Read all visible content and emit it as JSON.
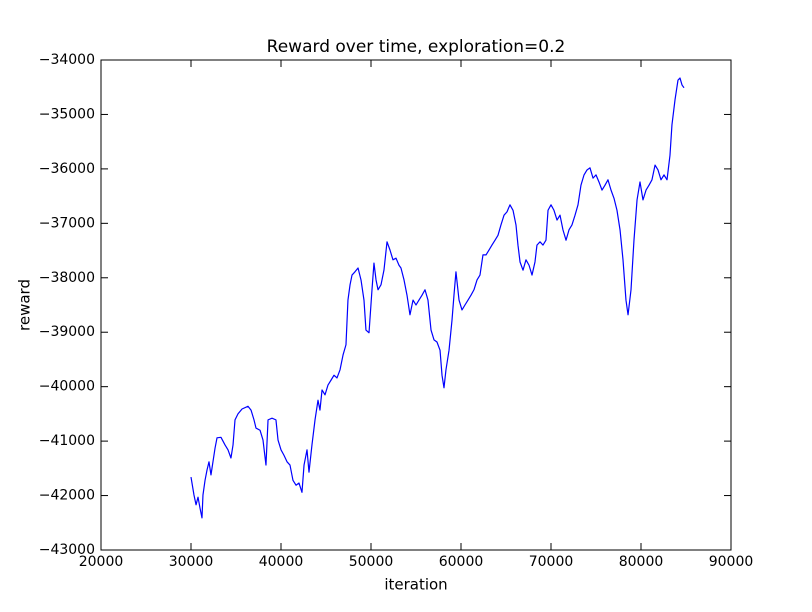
{
  "chart_data": {
    "type": "line",
    "title": "Reward over time, exploration=0.2",
    "x_label": "iteration",
    "y_label": "reward",
    "x": [
      30000,
      30330,
      30560,
      30780,
      31000,
      31220,
      31330,
      31560,
      31780,
      32000,
      32220,
      32440,
      32670,
      32890,
      33330,
      33780,
      34110,
      34440,
      34670,
      34890,
      35220,
      35670,
      36330,
      36670,
      37000,
      37220,
      37670,
      38000,
      38330,
      38560,
      39000,
      39440,
      39670,
      40000,
      40330,
      40670,
      41000,
      41330,
      41670,
      42000,
      42330,
      42560,
      42890,
      43110,
      43440,
      43780,
      44110,
      44330,
      44560,
      44890,
      45220,
      45560,
      45890,
      46220,
      46560,
      46890,
      47220,
      47440,
      47670,
      47890,
      48220,
      48560,
      48890,
      49220,
      49440,
      49780,
      50110,
      50330,
      50560,
      50780,
      51110,
      51440,
      51780,
      52110,
      52440,
      52780,
      53110,
      53330,
      53670,
      54000,
      54330,
      54670,
      55000,
      55330,
      55670,
      56000,
      56330,
      56670,
      57000,
      57330,
      57670,
      57890,
      58110,
      58330,
      58670,
      59000,
      59220,
      59440,
      59780,
      60110,
      60440,
      60780,
      61110,
      61440,
      61780,
      62110,
      62440,
      62780,
      63110,
      63440,
      63780,
      64110,
      64440,
      64780,
      65110,
      65440,
      65780,
      66110,
      66330,
      66560,
      66890,
      67220,
      67560,
      67890,
      68220,
      68440,
      68780,
      69110,
      69440,
      69670,
      70000,
      70330,
      70670,
      71000,
      71330,
      71670,
      72000,
      72330,
      72670,
      73000,
      73330,
      73670,
      74000,
      74330,
      74670,
      75000,
      75330,
      75670,
      76000,
      76330,
      76670,
      77000,
      77330,
      77670,
      78000,
      78330,
      78560,
      78890,
      79220,
      79560,
      79890,
      80220,
      80560,
      80890,
      81220,
      81560,
      81890,
      82220,
      82560,
      82890,
      83220,
      83440,
      83780,
      84110,
      84330,
      84560,
      84780
    ],
    "series": [
      {
        "color": "#0000ff",
        "values": [
          -41660,
          -41990,
          -42170,
          -42030,
          -42230,
          -42410,
          -41990,
          -41720,
          -41530,
          -41380,
          -41620,
          -41380,
          -41130,
          -40940,
          -40930,
          -41070,
          -41160,
          -41310,
          -41070,
          -40610,
          -40500,
          -40410,
          -40360,
          -40430,
          -40610,
          -40760,
          -40800,
          -40980,
          -41440,
          -40610,
          -40580,
          -40610,
          -40980,
          -41160,
          -41260,
          -41380,
          -41440,
          -41720,
          -41810,
          -41770,
          -41940,
          -41440,
          -41160,
          -41570,
          -41070,
          -40610,
          -40250,
          -40430,
          -40060,
          -40150,
          -39970,
          -39880,
          -39790,
          -39840,
          -39690,
          -39420,
          -39230,
          -38410,
          -38130,
          -37950,
          -37890,
          -37820,
          -38040,
          -38410,
          -38960,
          -39010,
          -38220,
          -37730,
          -38040,
          -38220,
          -38130,
          -37860,
          -37340,
          -37490,
          -37670,
          -37640,
          -37770,
          -37820,
          -38040,
          -38320,
          -38680,
          -38410,
          -38500,
          -38410,
          -38320,
          -38220,
          -38410,
          -38960,
          -39140,
          -39180,
          -39330,
          -39790,
          -40020,
          -39690,
          -39330,
          -38780,
          -38320,
          -37890,
          -38410,
          -38590,
          -38500,
          -38410,
          -38320,
          -38220,
          -38040,
          -37950,
          -37580,
          -37580,
          -37490,
          -37400,
          -37310,
          -37220,
          -37030,
          -36850,
          -36790,
          -36660,
          -36760,
          -37030,
          -37400,
          -37710,
          -37860,
          -37670,
          -37770,
          -37950,
          -37710,
          -37400,
          -37340,
          -37400,
          -37310,
          -36760,
          -36660,
          -36760,
          -36940,
          -36850,
          -37120,
          -37310,
          -37120,
          -37030,
          -36850,
          -36660,
          -36300,
          -36110,
          -36020,
          -35980,
          -36170,
          -36110,
          -36240,
          -36390,
          -36300,
          -36200,
          -36390,
          -36540,
          -36760,
          -37120,
          -37670,
          -38410,
          -38680,
          -38220,
          -37310,
          -36570,
          -36240,
          -36570,
          -36390,
          -36300,
          -36200,
          -35930,
          -36020,
          -36200,
          -36110,
          -36200,
          -35750,
          -35190,
          -34730,
          -34370,
          -34330,
          -34460,
          -34510
        ]
      }
    ],
    "xlim": [
      20000,
      90000
    ],
    "xticks": [
      20000,
      30000,
      40000,
      50000,
      60000,
      70000,
      80000,
      90000
    ],
    "ylim": [
      -43000,
      -34000
    ],
    "yticks": [
      {
        "value": -43000,
        "label": "−43000"
      },
      {
        "value": -42000,
        "label": "−42000"
      },
      {
        "value": -41000,
        "label": "−41000"
      },
      {
        "value": -40000,
        "label": "−40000"
      },
      {
        "value": -39000,
        "label": "−39000"
      },
      {
        "value": -38000,
        "label": "−38000"
      },
      {
        "value": -37000,
        "label": "−37000"
      },
      {
        "value": -36000,
        "label": "−36000"
      },
      {
        "value": -35000,
        "label": "−35000"
      },
      {
        "value": -34000,
        "label": "−34000"
      }
    ],
    "grid": false
  }
}
